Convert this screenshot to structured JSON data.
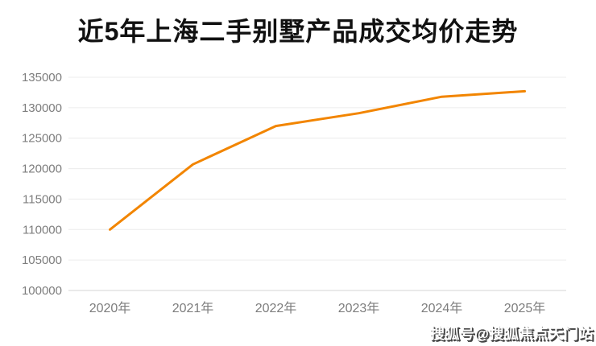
{
  "title": "近5年上海二手别墅产品成交均价走势",
  "watermark": {
    "text": "搜狐号@搜狐焦点天门站"
  },
  "colors": {
    "line": "#f28500",
    "grid": "#ececec",
    "axis": "#d6d6d6",
    "tick_label": "#7d7d7d",
    "title_text": "#111111"
  },
  "chart_data": {
    "type": "line",
    "title": "近5年上海二手别墅产品成交均价走势",
    "categories": [
      "2020年",
      "2021年",
      "2022年",
      "2023年",
      "2024年",
      "2025年"
    ],
    "values": [
      110000,
      120700,
      127000,
      129100,
      131800,
      132700
    ],
    "xlabel": "",
    "ylabel": "",
    "ylim": [
      100000,
      135000
    ],
    "ytick_step": 5000,
    "yticks": [
      100000,
      105000,
      110000,
      115000,
      120000,
      125000,
      130000,
      135000
    ],
    "grid": true,
    "legend": false,
    "line_color": "#f28500"
  }
}
